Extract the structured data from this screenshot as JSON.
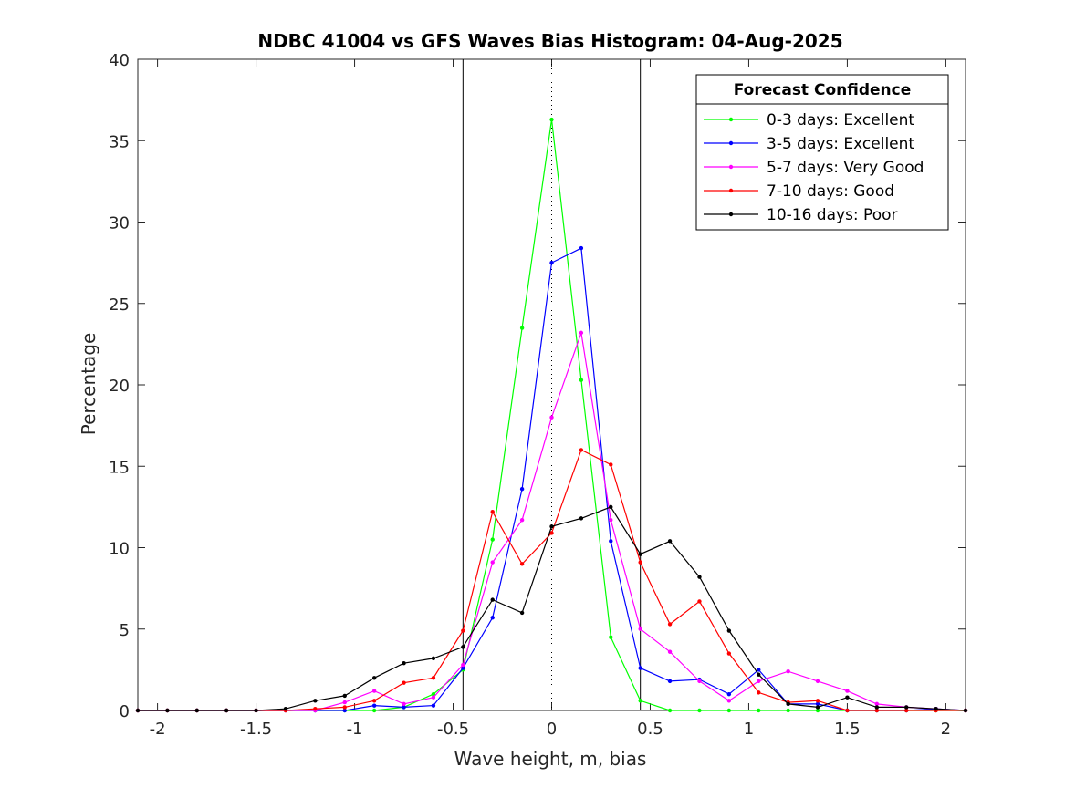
{
  "chart_data": {
    "type": "line",
    "title": "NDBC 41004 vs GFS Waves Bias Histogram: 04-Aug-2025",
    "xlabel": "Wave height, m, bias",
    "ylabel": "Percentage",
    "xlim": [
      -2.1,
      2.1
    ],
    "ylim": [
      0,
      40
    ],
    "xticks": [
      -2,
      -1.5,
      -1,
      -0.5,
      0,
      0.5,
      1,
      1.5,
      2
    ],
    "xtick_labels": [
      "-2",
      "-1.5",
      "-1",
      "-0.5",
      "0",
      "0.5",
      "1",
      "1.5",
      "2"
    ],
    "yticks": [
      0,
      5,
      10,
      15,
      20,
      25,
      30,
      35,
      40
    ],
    "ytick_labels": [
      "0",
      "5",
      "10",
      "15",
      "20",
      "25",
      "30",
      "35",
      "40"
    ],
    "grid": false,
    "reference_lines": [
      {
        "x": -0.45,
        "style": "solid",
        "color": "#000000"
      },
      {
        "x": 0,
        "style": "dotted",
        "color": "#000000"
      },
      {
        "x": 0.45,
        "style": "solid",
        "color": "#000000"
      }
    ],
    "legend": {
      "title": "Forecast Confidence",
      "placement": "top-right"
    },
    "x": [
      -2.1,
      -1.95,
      -1.8,
      -1.65,
      -1.5,
      -1.35,
      -1.2,
      -1.05,
      -0.9,
      -0.75,
      -0.6,
      -0.45,
      -0.3,
      -0.15,
      0,
      0.15,
      0.3,
      0.45,
      0.6,
      0.75,
      0.9,
      1.05,
      1.2,
      1.35,
      1.5,
      1.65,
      1.8,
      1.95,
      2.1
    ],
    "series": [
      {
        "name": "0-3 days: Excellent",
        "color": "#00ff00",
        "values": [
          0,
          0,
          0,
          0,
          0,
          0,
          0,
          0,
          0,
          0.2,
          1.0,
          2.5,
          10.5,
          23.5,
          36.3,
          20.3,
          4.5,
          0.6,
          0,
          0,
          0,
          0,
          0,
          0,
          0,
          0,
          0,
          0,
          0
        ]
      },
      {
        "name": "3-5 days: Excellent",
        "color": "#0000ff",
        "values": [
          0,
          0,
          0,
          0,
          0,
          0,
          0,
          0,
          0.3,
          0.2,
          0.3,
          2.6,
          5.7,
          13.6,
          27.5,
          28.4,
          10.4,
          2.6,
          1.8,
          1.9,
          1.0,
          2.5,
          0.4,
          0.4,
          0,
          0,
          0,
          0.1,
          0
        ]
      },
      {
        "name": "5-7 days: Very Good",
        "color": "#ff00ff",
        "values": [
          0,
          0,
          0,
          0,
          0,
          0,
          0,
          0.5,
          1.2,
          0.4,
          0.8,
          2.8,
          9.1,
          11.7,
          18.0,
          23.2,
          11.7,
          5.0,
          3.6,
          1.8,
          0.6,
          1.8,
          2.4,
          1.8,
          1.2,
          0.4,
          0.2,
          0.1,
          0
        ]
      },
      {
        "name": "7-10 days: Good",
        "color": "#ff0000",
        "values": [
          0,
          0,
          0,
          0,
          0,
          0,
          0.1,
          0.2,
          0.6,
          1.7,
          2.0,
          4.9,
          12.2,
          9.0,
          10.9,
          16.0,
          15.1,
          9.1,
          5.3,
          6.7,
          3.5,
          1.1,
          0.5,
          0.6,
          0,
          0,
          0,
          0,
          0
        ]
      },
      {
        "name": "10-16 days: Poor",
        "color": "#000000",
        "values": [
          0,
          0,
          0,
          0,
          0,
          0.1,
          0.6,
          0.9,
          2.0,
          2.9,
          3.2,
          3.9,
          6.8,
          6.0,
          11.3,
          11.8,
          12.5,
          9.6,
          10.4,
          8.2,
          4.9,
          2.2,
          0.4,
          0.2,
          0.8,
          0.2,
          0.2,
          0.1,
          0
        ]
      }
    ]
  }
}
